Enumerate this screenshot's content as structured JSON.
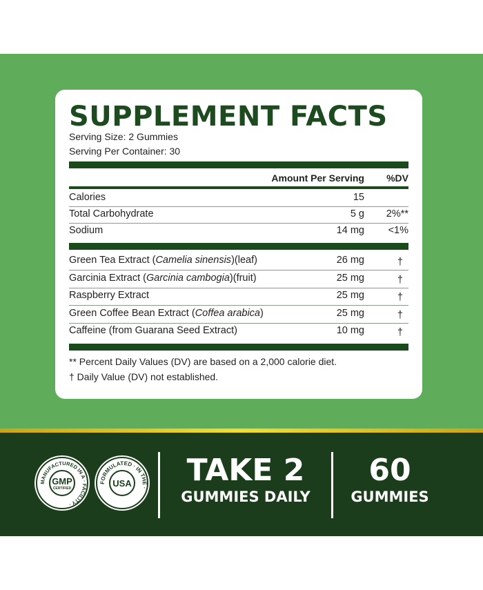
{
  "title": "SUPPLEMENT FACTS",
  "serving_size": "Serving Size: 2 Gummies",
  "servings_per_container": "Serving Per Container: 30",
  "header": {
    "amount": "Amount Per Serving",
    "dv": "%DV"
  },
  "nutrients": [
    {
      "name": "Calories",
      "amount": "15",
      "dv": ""
    },
    {
      "name": "Total Carbohydrate",
      "amount": "5 g",
      "dv": "2%**"
    },
    {
      "name": "Sodium",
      "amount": "14 mg",
      "dv": "<1%"
    }
  ],
  "ingredients": [
    {
      "name": "Green Tea Extract (",
      "latin": "Camelia sinensis",
      "after": ")(leaf)",
      "amount": "26 mg",
      "dv": "†"
    },
    {
      "name": "Garcinia Extract (",
      "latin": "Garcinia cambogia",
      "after": ")(fruit)",
      "amount": "25 mg",
      "dv": "†"
    },
    {
      "name": "Raspberry Extract",
      "latin": "",
      "after": "",
      "amount": "25 mg",
      "dv": "†"
    },
    {
      "name": "Green Coffee Bean Extract (",
      "latin": "Coffea arabica",
      "after": ")",
      "amount": "25 mg",
      "dv": "†"
    },
    {
      "name": "Caffeine (from Guarana Seed Extract)",
      "latin": "",
      "after": "",
      "amount": "10 mg",
      "dv": "†"
    }
  ],
  "footnotes": [
    "** Percent Daily Values (DV) are based on a 2,000 calorie diet.",
    "† Daily Value (DV) not established."
  ],
  "badges": {
    "gmp": {
      "center": "GMP",
      "sub": "CERTIFIED",
      "ring": "MANUFACTURED IN A · FACILITY ·"
    },
    "usa": {
      "center": "USA",
      "ring": "FORMULATED · IN THE ·"
    }
  },
  "dosage": {
    "big": "TAKE 2",
    "small": "GUMMIES DAILY"
  },
  "count": {
    "big": "60",
    "small": "GUMMIES"
  },
  "colors": {
    "background_green": "#5fad5a",
    "dark_green": "#1b3d1b",
    "title_green": "#1d4a1f",
    "gold": "#e8cf2c"
  }
}
